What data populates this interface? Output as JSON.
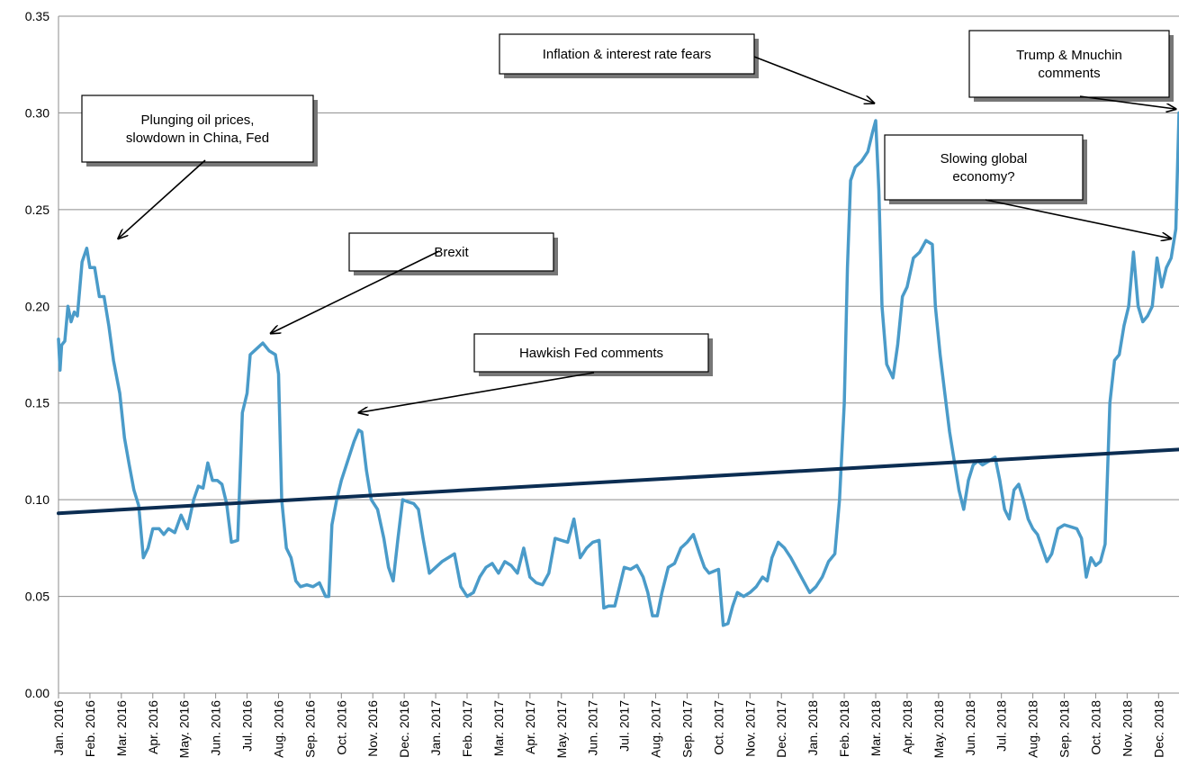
{
  "chart_data": {
    "type": "line",
    "title": "",
    "xlabel": "",
    "ylabel": "",
    "ylim": [
      0,
      0.35
    ],
    "yticks": [
      "0.00",
      "0.05",
      "0.10",
      "0.15",
      "0.20",
      "0.25",
      "0.30",
      "0.35"
    ],
    "grid": true,
    "x_categories": [
      "Jan. 2016",
      "Feb. 2016",
      "Mar. 2016",
      "Apr. 2016",
      "May. 2016",
      "Jun. 2016",
      "Jul. 2016",
      "Aug. 2016",
      "Sep. 2016",
      "Oct. 2016",
      "Nov. 2016",
      "Dec. 2016",
      "Jan. 2017",
      "Feb. 2017",
      "Mar. 2017",
      "Apr. 2017",
      "May. 2017",
      "Jun. 2017",
      "Jul. 2017",
      "Aug. 2017",
      "Sep. 2017",
      "Oct. 2017",
      "Nov. 2017",
      "Dec. 2017",
      "Jan. 2018",
      "Feb. 2018",
      "Mar. 2018",
      "Apr. 2018",
      "May. 2018",
      "Jun. 2018",
      "Jul. 2018",
      "Aug. 2018",
      "Sep. 2018",
      "Oct. 2018",
      "Nov. 2018",
      "Dec. 2018"
    ],
    "series": [
      {
        "color": "#4a9bc9",
        "points": [
          [
            0.0,
            0.183
          ],
          [
            0.05,
            0.167
          ],
          [
            0.1,
            0.18
          ],
          [
            0.2,
            0.182
          ],
          [
            0.3,
            0.2
          ],
          [
            0.4,
            0.192
          ],
          [
            0.5,
            0.197
          ],
          [
            0.6,
            0.195
          ],
          [
            0.75,
            0.223
          ],
          [
            0.9,
            0.23
          ],
          [
            1.0,
            0.22
          ],
          [
            1.15,
            0.22
          ],
          [
            1.3,
            0.205
          ],
          [
            1.45,
            0.205
          ],
          [
            1.6,
            0.19
          ],
          [
            1.75,
            0.172
          ],
          [
            1.95,
            0.155
          ],
          [
            2.1,
            0.132
          ],
          [
            2.25,
            0.118
          ],
          [
            2.4,
            0.105
          ],
          [
            2.55,
            0.097
          ],
          [
            2.7,
            0.07
          ],
          [
            2.85,
            0.075
          ],
          [
            3.0,
            0.085
          ],
          [
            3.2,
            0.085
          ],
          [
            3.35,
            0.082
          ],
          [
            3.5,
            0.085
          ],
          [
            3.7,
            0.083
          ],
          [
            3.9,
            0.092
          ],
          [
            4.1,
            0.085
          ],
          [
            4.3,
            0.1
          ],
          [
            4.45,
            0.107
          ],
          [
            4.6,
            0.106
          ],
          [
            4.75,
            0.119
          ],
          [
            4.9,
            0.11
          ],
          [
            5.05,
            0.11
          ],
          [
            5.2,
            0.108
          ],
          [
            5.35,
            0.098
          ],
          [
            5.5,
            0.078
          ],
          [
            5.7,
            0.079
          ],
          [
            5.85,
            0.145
          ],
          [
            6.0,
            0.155
          ],
          [
            6.1,
            0.175
          ],
          [
            6.3,
            0.178
          ],
          [
            6.5,
            0.181
          ],
          [
            6.7,
            0.177
          ],
          [
            6.9,
            0.175
          ],
          [
            7.0,
            0.165
          ],
          [
            7.1,
            0.1
          ],
          [
            7.25,
            0.075
          ],
          [
            7.4,
            0.07
          ],
          [
            7.55,
            0.058
          ],
          [
            7.7,
            0.055
          ],
          [
            7.9,
            0.056
          ],
          [
            8.1,
            0.055
          ],
          [
            8.3,
            0.057
          ],
          [
            8.5,
            0.05
          ],
          [
            8.6,
            0.05
          ],
          [
            8.7,
            0.087
          ],
          [
            8.85,
            0.1
          ],
          [
            9.0,
            0.11
          ],
          [
            9.2,
            0.12
          ],
          [
            9.4,
            0.13
          ],
          [
            9.55,
            0.136
          ],
          [
            9.65,
            0.135
          ],
          [
            9.8,
            0.115
          ],
          [
            9.95,
            0.1
          ],
          [
            10.15,
            0.095
          ],
          [
            10.35,
            0.08
          ],
          [
            10.5,
            0.065
          ],
          [
            10.65,
            0.058
          ],
          [
            10.8,
            0.08
          ],
          [
            10.95,
            0.1
          ],
          [
            11.1,
            0.099
          ],
          [
            11.3,
            0.098
          ],
          [
            11.45,
            0.095
          ],
          [
            11.6,
            0.08
          ],
          [
            11.8,
            0.062
          ],
          [
            12.0,
            0.065
          ],
          [
            12.2,
            0.068
          ],
          [
            12.4,
            0.07
          ],
          [
            12.6,
            0.072
          ],
          [
            12.8,
            0.055
          ],
          [
            13.0,
            0.05
          ],
          [
            13.2,
            0.052
          ],
          [
            13.4,
            0.06
          ],
          [
            13.6,
            0.065
          ],
          [
            13.8,
            0.067
          ],
          [
            14.0,
            0.062
          ],
          [
            14.2,
            0.068
          ],
          [
            14.4,
            0.066
          ],
          [
            14.6,
            0.062
          ],
          [
            14.8,
            0.075
          ],
          [
            15.0,
            0.06
          ],
          [
            15.2,
            0.057
          ],
          [
            15.4,
            0.056
          ],
          [
            15.6,
            0.062
          ],
          [
            15.8,
            0.08
          ],
          [
            16.0,
            0.079
          ],
          [
            16.2,
            0.078
          ],
          [
            16.4,
            0.09
          ],
          [
            16.6,
            0.07
          ],
          [
            16.8,
            0.075
          ],
          [
            17.0,
            0.078
          ],
          [
            17.2,
            0.079
          ],
          [
            17.35,
            0.044
          ],
          [
            17.5,
            0.045
          ],
          [
            17.7,
            0.045
          ],
          [
            17.85,
            0.055
          ],
          [
            18.0,
            0.065
          ],
          [
            18.2,
            0.064
          ],
          [
            18.4,
            0.066
          ],
          [
            18.6,
            0.06
          ],
          [
            18.75,
            0.052
          ],
          [
            18.9,
            0.04
          ],
          [
            19.05,
            0.04
          ],
          [
            19.2,
            0.052
          ],
          [
            19.4,
            0.065
          ],
          [
            19.6,
            0.067
          ],
          [
            19.8,
            0.075
          ],
          [
            20.0,
            0.078
          ],
          [
            20.2,
            0.082
          ],
          [
            20.4,
            0.072
          ],
          [
            20.55,
            0.065
          ],
          [
            20.7,
            0.062
          ],
          [
            20.85,
            0.063
          ],
          [
            21.0,
            0.064
          ],
          [
            21.15,
            0.035
          ],
          [
            21.3,
            0.036
          ],
          [
            21.45,
            0.045
          ],
          [
            21.6,
            0.052
          ],
          [
            21.8,
            0.05
          ],
          [
            22.0,
            0.052
          ],
          [
            22.2,
            0.055
          ],
          [
            22.4,
            0.06
          ],
          [
            22.55,
            0.058
          ],
          [
            22.7,
            0.07
          ],
          [
            22.9,
            0.078
          ],
          [
            23.1,
            0.075
          ],
          [
            23.3,
            0.07
          ],
          [
            23.5,
            0.064
          ],
          [
            23.7,
            0.058
          ],
          [
            23.9,
            0.052
          ],
          [
            24.1,
            0.055
          ],
          [
            24.3,
            0.06
          ],
          [
            24.5,
            0.068
          ],
          [
            24.7,
            0.072
          ],
          [
            24.85,
            0.1
          ],
          [
            25.0,
            0.15
          ],
          [
            25.1,
            0.22
          ],
          [
            25.2,
            0.265
          ],
          [
            25.35,
            0.272
          ],
          [
            25.55,
            0.275
          ],
          [
            25.75,
            0.28
          ],
          [
            25.9,
            0.29
          ],
          [
            26.0,
            0.296
          ],
          [
            26.1,
            0.26
          ],
          [
            26.2,
            0.2
          ],
          [
            26.35,
            0.17
          ],
          [
            26.55,
            0.163
          ],
          [
            26.7,
            0.18
          ],
          [
            26.85,
            0.205
          ],
          [
            27.0,
            0.21
          ],
          [
            27.2,
            0.225
          ],
          [
            27.4,
            0.228
          ],
          [
            27.6,
            0.234
          ],
          [
            27.8,
            0.232
          ],
          [
            27.9,
            0.2
          ],
          [
            28.05,
            0.175
          ],
          [
            28.2,
            0.155
          ],
          [
            28.35,
            0.135
          ],
          [
            28.5,
            0.12
          ],
          [
            28.65,
            0.105
          ],
          [
            28.8,
            0.095
          ],
          [
            28.95,
            0.11
          ],
          [
            29.1,
            0.118
          ],
          [
            29.25,
            0.12
          ],
          [
            29.4,
            0.118
          ],
          [
            29.6,
            0.12
          ],
          [
            29.8,
            0.122
          ],
          [
            29.95,
            0.11
          ],
          [
            30.1,
            0.095
          ],
          [
            30.25,
            0.09
          ],
          [
            30.4,
            0.105
          ],
          [
            30.55,
            0.108
          ],
          [
            30.7,
            0.1
          ],
          [
            30.85,
            0.09
          ],
          [
            31.0,
            0.085
          ],
          [
            31.15,
            0.082
          ],
          [
            31.3,
            0.075
          ],
          [
            31.45,
            0.068
          ],
          [
            31.6,
            0.072
          ],
          [
            31.8,
            0.085
          ],
          [
            32.0,
            0.087
          ],
          [
            32.2,
            0.086
          ],
          [
            32.4,
            0.085
          ],
          [
            32.55,
            0.08
          ],
          [
            32.7,
            0.06
          ],
          [
            32.85,
            0.07
          ],
          [
            33.0,
            0.066
          ],
          [
            33.15,
            0.068
          ],
          [
            33.3,
            0.077
          ],
          [
            33.45,
            0.15
          ],
          [
            33.6,
            0.172
          ],
          [
            33.75,
            0.175
          ],
          [
            33.9,
            0.19
          ],
          [
            34.05,
            0.2
          ],
          [
            34.2,
            0.228
          ],
          [
            34.35,
            0.2
          ],
          [
            34.5,
            0.192
          ],
          [
            34.65,
            0.195
          ],
          [
            34.8,
            0.2
          ],
          [
            34.95,
            0.225
          ],
          [
            35.1,
            0.21
          ],
          [
            35.25,
            0.22
          ],
          [
            35.4,
            0.225
          ],
          [
            35.55,
            0.24
          ],
          [
            35.65,
            0.3
          ]
        ]
      },
      {
        "color": "#0b2d52",
        "points": [
          [
            0,
            0.093
          ],
          [
            35.7,
            0.126
          ]
        ]
      }
    ],
    "annotations": [
      {
        "lines": [
          "Plunging oil prices,",
          "slowdown  in China, Fed"
        ],
        "target": [
          1.9,
          0.235
        ]
      },
      {
        "lines": [
          "Brexit"
        ],
        "target": [
          6.75,
          0.186
        ]
      },
      {
        "lines": [
          "Hawkish  Fed comments"
        ],
        "target": [
          9.55,
          0.145
        ]
      },
      {
        "lines": [
          "Inflation & interest rate fears"
        ],
        "target": [
          25.95,
          0.305
        ]
      },
      {
        "lines": [
          "Trump & Mnuchin",
          "comments"
        ],
        "target": [
          35.55,
          0.302
        ]
      },
      {
        "lines": [
          "Slowing global",
          "economy?"
        ],
        "target": [
          35.4,
          0.235
        ]
      }
    ]
  }
}
